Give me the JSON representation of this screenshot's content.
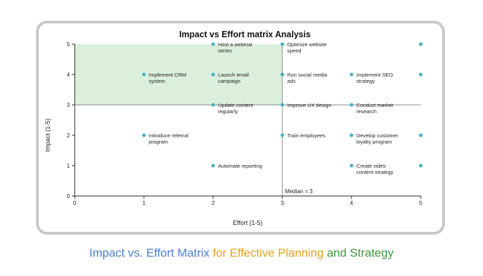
{
  "caption": {
    "part1": "Impact vs. Effort Matrix",
    "part2": " for Effective Planning",
    "part3": " and Strategy",
    "colors": [
      "#4a7fd0",
      "#e8a21a",
      "#3c9a3c"
    ]
  },
  "chart_data": {
    "type": "scatter",
    "title": "Impact vs Effort matrix Analysis",
    "xlabel": "Effort (1-5)",
    "ylabel": "Impact (1-5)",
    "xlim": [
      0,
      5
    ],
    "ylim": [
      0,
      5
    ],
    "xticks": [
      0,
      1,
      2,
      3,
      4,
      5
    ],
    "yticks": [
      0,
      1,
      2,
      3,
      4,
      5
    ],
    "median_label": "Median = 3",
    "median": 3,
    "highlight_region": {
      "x": [
        0,
        3
      ],
      "y": [
        3,
        5
      ],
      "color": "#dcefdc"
    },
    "point_color": "#45b3c1",
    "points": [
      {
        "x": 2,
        "y": 5,
        "label": "Host a webinar series"
      },
      {
        "x": 3,
        "y": 5,
        "label": "Optimize website speed"
      },
      {
        "x": 5,
        "y": 5,
        "label": ""
      },
      {
        "x": 1,
        "y": 4,
        "label": "Implement CRM system"
      },
      {
        "x": 2,
        "y": 4,
        "label": "Launch email campaign"
      },
      {
        "x": 3,
        "y": 4,
        "label": "Run social media ads"
      },
      {
        "x": 4,
        "y": 4,
        "label": "Implement SEO strategy"
      },
      {
        "x": 5,
        "y": 4,
        "label": ""
      },
      {
        "x": 2,
        "y": 3,
        "label": "Update content regularly"
      },
      {
        "x": 3,
        "y": 3,
        "label": "Improve UX design"
      },
      {
        "x": 4,
        "y": 3,
        "label": "Conduct market research"
      },
      {
        "x": 1,
        "y": 2,
        "label": "Introduce referral program"
      },
      {
        "x": 3,
        "y": 2,
        "label": "Train employees"
      },
      {
        "x": 4,
        "y": 2,
        "label": "Develop customer loyalty program"
      },
      {
        "x": 5,
        "y": 2,
        "label": ""
      },
      {
        "x": 2,
        "y": 1,
        "label": "Automate reporting"
      },
      {
        "x": 4,
        "y": 1,
        "label": "Create video content strategy"
      },
      {
        "x": 5,
        "y": 1,
        "label": ""
      }
    ]
  }
}
